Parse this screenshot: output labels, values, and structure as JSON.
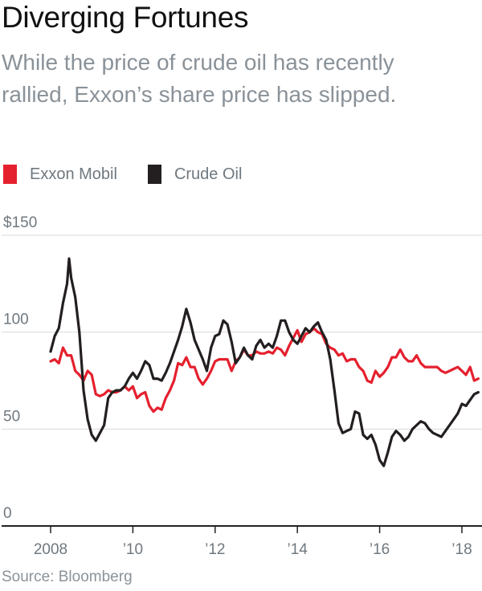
{
  "title": "Diverging Fortunes",
  "subtitle": "While the price of crude oil has recently rallied, Exxon’s share price has slipped.",
  "legend": [
    {
      "label": "Exxon Mobil",
      "color": "#e5202e"
    },
    {
      "label": "Crude Oil",
      "color": "#231f20"
    }
  ],
  "source": "Source: Bloomberg",
  "chart_data": {
    "type": "line",
    "title": "Diverging Fortunes",
    "ylim": [
      0,
      150
    ],
    "xlim": [
      2008,
      2018.45
    ],
    "y_ticks": [
      {
        "value": 150,
        "label": "$150"
      },
      {
        "value": 100,
        "label": "100"
      },
      {
        "value": 50,
        "label": "50"
      },
      {
        "value": 0,
        "label": "0"
      }
    ],
    "x_ticks": [
      {
        "value": 2008,
        "label": "2008"
      },
      {
        "value": 2010,
        "label": "’10"
      },
      {
        "value": 2012,
        "label": "’12"
      },
      {
        "value": 2014,
        "label": "’14"
      },
      {
        "value": 2016,
        "label": "’16"
      },
      {
        "value": 2018,
        "label": "’18"
      }
    ],
    "grid": true,
    "legend_position": "top-left",
    "series": [
      {
        "name": "Exxon Mobil",
        "color": "#e5202e",
        "points": [
          [
            2008.0,
            85
          ],
          [
            2008.1,
            86
          ],
          [
            2008.2,
            84
          ],
          [
            2008.3,
            92
          ],
          [
            2008.4,
            88
          ],
          [
            2008.5,
            88
          ],
          [
            2008.6,
            80
          ],
          [
            2008.7,
            78
          ],
          [
            2008.8,
            75
          ],
          [
            2008.9,
            80
          ],
          [
            2009.0,
            78
          ],
          [
            2009.1,
            68
          ],
          [
            2009.2,
            67
          ],
          [
            2009.3,
            68
          ],
          [
            2009.4,
            70
          ],
          [
            2009.5,
            69
          ],
          [
            2009.6,
            69
          ],
          [
            2009.7,
            70
          ],
          [
            2009.8,
            72
          ],
          [
            2009.9,
            70
          ],
          [
            2010.0,
            72
          ],
          [
            2010.1,
            66
          ],
          [
            2010.2,
            68
          ],
          [
            2010.3,
            69
          ],
          [
            2010.4,
            62
          ],
          [
            2010.5,
            59
          ],
          [
            2010.6,
            61
          ],
          [
            2010.7,
            60
          ],
          [
            2010.8,
            66
          ],
          [
            2010.9,
            70
          ],
          [
            2011.0,
            75
          ],
          [
            2011.1,
            84
          ],
          [
            2011.2,
            83
          ],
          [
            2011.3,
            87
          ],
          [
            2011.4,
            82
          ],
          [
            2011.5,
            82
          ],
          [
            2011.6,
            76
          ],
          [
            2011.7,
            73
          ],
          [
            2011.8,
            76
          ],
          [
            2011.9,
            80
          ],
          [
            2012.0,
            85
          ],
          [
            2012.1,
            86
          ],
          [
            2012.2,
            86
          ],
          [
            2012.3,
            86
          ],
          [
            2012.4,
            80
          ],
          [
            2012.5,
            85
          ],
          [
            2012.6,
            87
          ],
          [
            2012.7,
            91
          ],
          [
            2012.8,
            88
          ],
          [
            2012.9,
            88
          ],
          [
            2013.0,
            90
          ],
          [
            2013.1,
            89
          ],
          [
            2013.2,
            89
          ],
          [
            2013.3,
            90
          ],
          [
            2013.4,
            89
          ],
          [
            2013.5,
            92
          ],
          [
            2013.6,
            91
          ],
          [
            2013.7,
            88
          ],
          [
            2013.8,
            93
          ],
          [
            2013.9,
            97
          ],
          [
            2014.0,
            101
          ],
          [
            2014.1,
            95
          ],
          [
            2014.2,
            99
          ],
          [
            2014.3,
            100
          ],
          [
            2014.4,
            102
          ],
          [
            2014.5,
            100
          ],
          [
            2014.6,
            99
          ],
          [
            2014.7,
            94
          ],
          [
            2014.8,
            92
          ],
          [
            2014.9,
            91
          ],
          [
            2015.0,
            88
          ],
          [
            2015.1,
            89
          ],
          [
            2015.2,
            85
          ],
          [
            2015.3,
            86
          ],
          [
            2015.4,
            86
          ],
          [
            2015.5,
            82
          ],
          [
            2015.6,
            80
          ],
          [
            2015.7,
            75
          ],
          [
            2015.8,
            74
          ],
          [
            2015.9,
            80
          ],
          [
            2016.0,
            77
          ],
          [
            2016.1,
            79
          ],
          [
            2016.2,
            82
          ],
          [
            2016.3,
            87
          ],
          [
            2016.4,
            87
          ],
          [
            2016.5,
            91
          ],
          [
            2016.6,
            87
          ],
          [
            2016.7,
            85
          ],
          [
            2016.8,
            85
          ],
          [
            2016.9,
            88
          ],
          [
            2017.0,
            84
          ],
          [
            2017.1,
            82
          ],
          [
            2017.2,
            82
          ],
          [
            2017.3,
            82
          ],
          [
            2017.4,
            82
          ],
          [
            2017.5,
            80
          ],
          [
            2017.6,
            79
          ],
          [
            2017.7,
            80
          ],
          [
            2017.8,
            81
          ],
          [
            2017.9,
            82
          ],
          [
            2018.0,
            80
          ],
          [
            2018.1,
            78
          ],
          [
            2018.2,
            82
          ],
          [
            2018.3,
            75
          ],
          [
            2018.4,
            76
          ]
        ]
      },
      {
        "name": "Crude Oil",
        "color": "#231f20",
        "points": [
          [
            2008.0,
            90
          ],
          [
            2008.1,
            98
          ],
          [
            2008.2,
            102
          ],
          [
            2008.3,
            115
          ],
          [
            2008.4,
            125
          ],
          [
            2008.45,
            138
          ],
          [
            2008.5,
            128
          ],
          [
            2008.6,
            118
          ],
          [
            2008.7,
            100
          ],
          [
            2008.8,
            70
          ],
          [
            2008.9,
            55
          ],
          [
            2009.0,
            47
          ],
          [
            2009.1,
            44
          ],
          [
            2009.2,
            48
          ],
          [
            2009.3,
            52
          ],
          [
            2009.4,
            66
          ],
          [
            2009.5,
            69
          ],
          [
            2009.6,
            70
          ],
          [
            2009.7,
            70
          ],
          [
            2009.8,
            72
          ],
          [
            2009.9,
            76
          ],
          [
            2010.0,
            79
          ],
          [
            2010.1,
            76
          ],
          [
            2010.2,
            80
          ],
          [
            2010.3,
            85
          ],
          [
            2010.4,
            83
          ],
          [
            2010.5,
            76
          ],
          [
            2010.6,
            76
          ],
          [
            2010.7,
            75
          ],
          [
            2010.8,
            79
          ],
          [
            2010.9,
            84
          ],
          [
            2011.0,
            90
          ],
          [
            2011.1,
            96
          ],
          [
            2011.2,
            103
          ],
          [
            2011.3,
            112
          ],
          [
            2011.4,
            105
          ],
          [
            2011.5,
            96
          ],
          [
            2011.6,
            91
          ],
          [
            2011.7,
            86
          ],
          [
            2011.8,
            80
          ],
          [
            2011.9,
            92
          ],
          [
            2012.0,
            98
          ],
          [
            2012.1,
            99
          ],
          [
            2012.2,
            106
          ],
          [
            2012.3,
            104
          ],
          [
            2012.4,
            95
          ],
          [
            2012.5,
            84
          ],
          [
            2012.6,
            87
          ],
          [
            2012.7,
            92
          ],
          [
            2012.8,
            88
          ],
          [
            2012.9,
            86
          ],
          [
            2013.0,
            93
          ],
          [
            2013.1,
            96
          ],
          [
            2013.2,
            92
          ],
          [
            2013.3,
            94
          ],
          [
            2013.4,
            92
          ],
          [
            2013.5,
            98
          ],
          [
            2013.6,
            106
          ],
          [
            2013.7,
            106
          ],
          [
            2013.8,
            100
          ],
          [
            2013.9,
            96
          ],
          [
            2014.0,
            94
          ],
          [
            2014.1,
            98
          ],
          [
            2014.2,
            102
          ],
          [
            2014.3,
            100
          ],
          [
            2014.4,
            103
          ],
          [
            2014.5,
            105
          ],
          [
            2014.6,
            100
          ],
          [
            2014.7,
            96
          ],
          [
            2014.8,
            86
          ],
          [
            2014.9,
            70
          ],
          [
            2015.0,
            53
          ],
          [
            2015.1,
            48
          ],
          [
            2015.2,
            49
          ],
          [
            2015.3,
            50
          ],
          [
            2015.4,
            59
          ],
          [
            2015.5,
            58
          ],
          [
            2015.6,
            47
          ],
          [
            2015.7,
            45
          ],
          [
            2015.8,
            47
          ],
          [
            2015.9,
            42
          ],
          [
            2016.0,
            34
          ],
          [
            2016.1,
            31
          ],
          [
            2016.2,
            38
          ],
          [
            2016.3,
            46
          ],
          [
            2016.4,
            49
          ],
          [
            2016.5,
            47
          ],
          [
            2016.6,
            44
          ],
          [
            2016.7,
            46
          ],
          [
            2016.8,
            50
          ],
          [
            2016.9,
            52
          ],
          [
            2017.0,
            54
          ],
          [
            2017.1,
            53
          ],
          [
            2017.2,
            50
          ],
          [
            2017.3,
            48
          ],
          [
            2017.4,
            47
          ],
          [
            2017.5,
            46
          ],
          [
            2017.6,
            49
          ],
          [
            2017.7,
            52
          ],
          [
            2017.8,
            55
          ],
          [
            2017.9,
            58
          ],
          [
            2018.0,
            63
          ],
          [
            2018.1,
            62
          ],
          [
            2018.2,
            65
          ],
          [
            2018.3,
            68
          ],
          [
            2018.4,
            69
          ]
        ]
      }
    ]
  }
}
